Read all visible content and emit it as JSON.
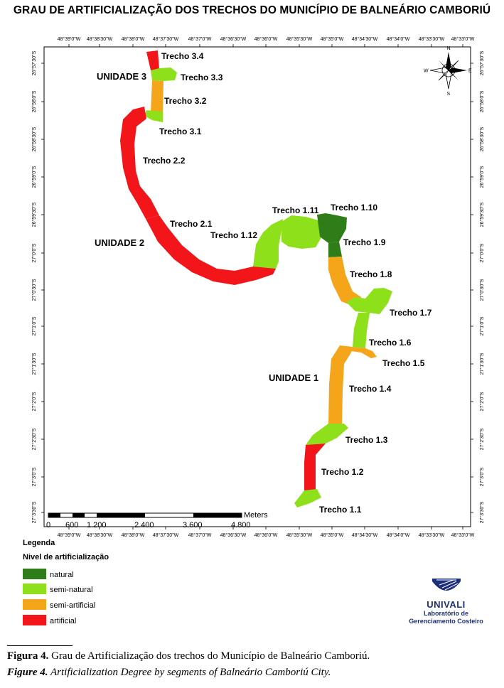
{
  "title": "GRAU DE ARTIFICIALIZAÇÃO DOS TRECHOS DO MUNICÍPIO DE BALNEÁRIO CAMBORIÚ",
  "lon_ticks": [
    "48°39'0\"W",
    "48°38'30\"W",
    "48°38'0\"W",
    "48°37'30\"W",
    "48°37'0\"W",
    "48°36'30\"W",
    "48°36'0\"W",
    "48°35'30\"W",
    "48°35'0\"W",
    "48°34'30\"W",
    "48°34'0\"W",
    "48°33'30\"W",
    "48°33'0\"W"
  ],
  "lat_ticks": [
    "26°57'30\"S",
    "26°58'0\"S",
    "26°58'30\"S",
    "26°59'0\"S",
    "26°59'30\"S",
    "27°0'0\"S",
    "27°0'30\"S",
    "27°1'0\"S",
    "27°1'30\"S",
    "27°2'0\"S",
    "27°2'30\"S",
    "27°3'0\"S",
    "27°3'30\"S"
  ],
  "colors": {
    "natural": "#2e7d18",
    "semi_natural": "#8ee01a",
    "semi_artificial": "#f5a51a",
    "artificial": "#f2161b"
  },
  "units": {
    "u1": "UNIDADE 1",
    "u2": "UNIDADE 2",
    "u3": "UNIDADE 3"
  },
  "segments": {
    "t11": "Trecho 1.1",
    "t12": "Trecho 1.2",
    "t13": "Trecho 1.3",
    "t14": "Trecho 1.4",
    "t15": "Trecho 1.5",
    "t16": "Trecho 1.6",
    "t17": "Trecho 1.7",
    "t18": "Trecho 1.8",
    "t19": "Trecho 1.9",
    "t110": "Trecho 1.10",
    "t111": "Trecho 1.11",
    "t112": "Trecho 1.12",
    "t21": "Trecho 2.1",
    "t22": "Trecho 2.2",
    "t31": "Trecho 3.1",
    "t32": "Trecho 3.2",
    "t33": "Trecho 3.3",
    "t34": "Trecho 3.4"
  },
  "compass": {
    "n": "N",
    "s": "S",
    "e": "E",
    "w": "W"
  },
  "scale": {
    "unit": "Meters",
    "labels": [
      "0",
      "600",
      "1.200",
      "2.400",
      "3.600",
      "4.800"
    ]
  },
  "legend": {
    "heading": "Legenda",
    "subheading": "Nivel de artificialização",
    "items": [
      "natural",
      "semi-natural",
      "semi-artificial",
      "artificial"
    ]
  },
  "logo": {
    "name": "UNIVALI",
    "line1": "Laboratório de",
    "line2": "Gerenciamento Costeiro"
  },
  "caption": {
    "pt_label": "Figura 4.",
    "pt_text": "Grau de Artificialização dos trechos do Município de Balneário Camboriú.",
    "en_label": "Figure 4.",
    "en_text": "Artificialization Degree by segments of Balneário Camboriú City."
  }
}
